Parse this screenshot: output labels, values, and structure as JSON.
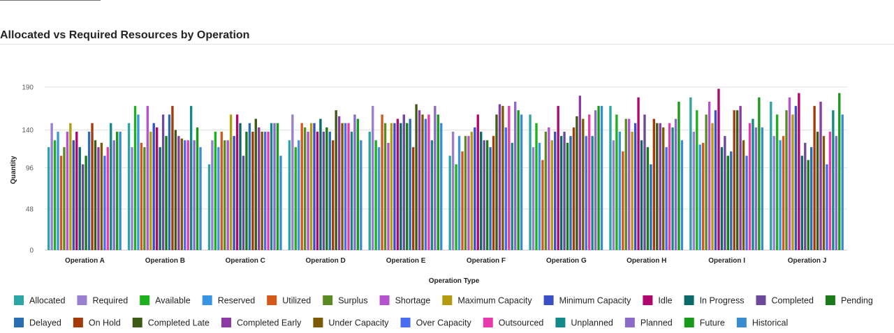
{
  "page": {
    "title": "Allocated vs Required Resources by Operation"
  },
  "colors": [
    "#2ca5a5",
    "#9a7fd1",
    "#1db11d",
    "#3a95e0",
    "#d4581a",
    "#5a8a24",
    "#b553cf",
    "#b39a0f",
    "#3a4fc4",
    "#b0076e",
    "#0a6a6a",
    "#6b4a99",
    "#1a7a1a",
    "#2b6db3",
    "#a33a0a",
    "#3d5a17",
    "#8c3ba6",
    "#7a5a05",
    "#4a6cf0",
    "#e83aaa",
    "#138a8a",
    "#8a6bc7",
    "#1a9a1a",
    "#3a8cd0"
  ],
  "chart_data": {
    "type": "bar",
    "title": "Allocated vs Required Resources by Operation",
    "xlabel": "Operation Type",
    "ylabel": "Quantity",
    "ylim": [
      0,
      192
    ],
    "yticks": [
      0,
      48,
      96,
      140,
      190
    ],
    "grid": true,
    "legend_position": "bottom",
    "categories": [
      "Operation A",
      "Operation B",
      "Operation C",
      "Operation D",
      "Operation E",
      "Operation F",
      "Operation G",
      "Operation H",
      "Operation I",
      "Operation J"
    ],
    "series": [
      {
        "name": "Allocated",
        "values": [
          120,
          148,
          100,
          128,
          138,
          110,
          158,
          168,
          178,
          173
        ]
      },
      {
        "name": "Required",
        "values": [
          148,
          120,
          128,
          158,
          168,
          138,
          120,
          128,
          138,
          133
        ]
      },
      {
        "name": "Available",
        "values": [
          128,
          168,
          138,
          120,
          128,
          100,
          148,
          158,
          163,
          158
        ]
      },
      {
        "name": "Reserved",
        "values": [
          138,
          158,
          120,
          128,
          120,
          133,
          125,
          138,
          123,
          128
        ]
      },
      {
        "name": "Utilized",
        "values": [
          110,
          125,
          138,
          148,
          158,
          115,
          105,
          115,
          125,
          133
        ]
      },
      {
        "name": "Surplus",
        "values": [
          120,
          120,
          128,
          143,
          148,
          133,
          138,
          153,
          158,
          163
        ]
      },
      {
        "name": "Shortage",
        "values": [
          138,
          168,
          128,
          138,
          125,
          133,
          143,
          153,
          173,
          178
        ]
      },
      {
        "name": "Maximum Capacity",
        "values": [
          148,
          138,
          158,
          148,
          148,
          138,
          128,
          138,
          148,
          158
        ]
      },
      {
        "name": "Minimum Capacity",
        "values": [
          128,
          148,
          133,
          148,
          148,
          143,
          138,
          148,
          163,
          168
        ]
      },
      {
        "name": "Idle",
        "values": [
          138,
          143,
          158,
          138,
          153,
          158,
          168,
          178,
          188,
          183
        ]
      },
      {
        "name": "In Progress",
        "values": [
          120,
          120,
          148,
          153,
          148,
          138,
          133,
          128,
          120,
          110
        ]
      },
      {
        "name": "Completed",
        "values": [
          100,
          158,
          110,
          138,
          158,
          128,
          138,
          158,
          133,
          125
        ]
      },
      {
        "name": "Pending",
        "values": [
          110,
          133,
          138,
          143,
          148,
          128,
          125,
          120,
          110,
          105
        ]
      },
      {
        "name": "Delayed",
        "values": [
          138,
          158,
          148,
          138,
          153,
          120,
          133,
          100,
          115,
          120
        ]
      },
      {
        "name": "On Hold",
        "values": [
          148,
          168,
          138,
          128,
          120,
          133,
          143,
          153,
          163,
          168
        ]
      },
      {
        "name": "Completed Late",
        "values": [
          128,
          140,
          153,
          163,
          170,
          158,
          156,
          148,
          163,
          138
        ]
      },
      {
        "name": "Completed Early",
        "values": [
          120,
          133,
          143,
          156,
          163,
          170,
          180,
          148,
          168,
          173
        ]
      },
      {
        "name": "Under Capacity",
        "values": [
          125,
          130,
          138,
          148,
          158,
          168,
          153,
          143,
          128,
          133
        ]
      },
      {
        "name": "Over Capacity",
        "values": [
          110,
          128,
          138,
          148,
          153,
          143,
          133,
          120,
          110,
          100
        ]
      },
      {
        "name": "Outsourced",
        "values": [
          120,
          128,
          138,
          148,
          158,
          168,
          158,
          148,
          148,
          138
        ]
      },
      {
        "name": "Unplanned",
        "values": [
          148,
          168,
          148,
          138,
          128,
          125,
          133,
          143,
          153,
          163
        ]
      },
      {
        "name": "Planned",
        "values": [
          128,
          128,
          148,
          158,
          168,
          173,
          163,
          153,
          143,
          133
        ]
      },
      {
        "name": "Future",
        "values": [
          138,
          143,
          148,
          153,
          158,
          163,
          168,
          173,
          178,
          183
        ]
      },
      {
        "name": "Historical",
        "values": [
          138,
          120,
          110,
          128,
          148,
          158,
          168,
          128,
          143,
          158
        ]
      }
    ]
  }
}
